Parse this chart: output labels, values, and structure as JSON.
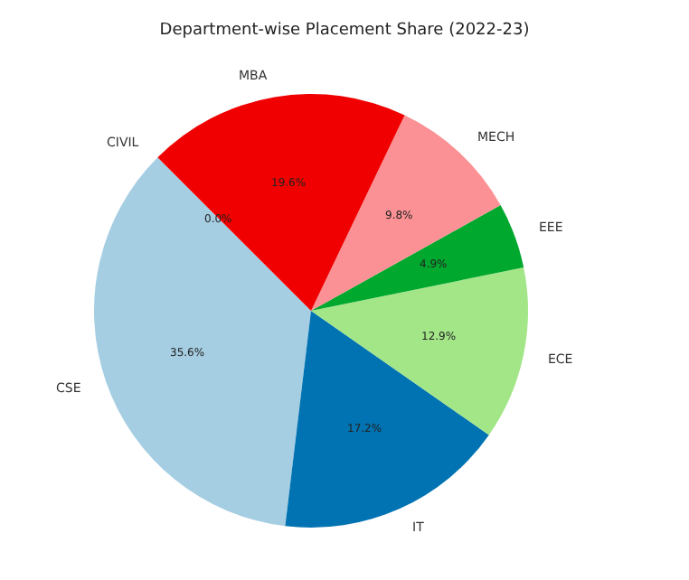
{
  "chart_data": {
    "type": "pie",
    "title": "Department-wise Placement Share (2022-23)",
    "categories": [
      "CSE",
      "IT",
      "ECE",
      "EEE",
      "MECH",
      "MBA",
      "CIVIL"
    ],
    "values": [
      35.6,
      17.2,
      12.9,
      4.9,
      9.8,
      19.6,
      0.0
    ],
    "colors": [
      "#a6cee3",
      "#0173b2",
      "#a3e688",
      "#00a82d",
      "#fb9194",
      "#f00000",
      "#fdbf6f"
    ],
    "value_labels": [
      "35.6%",
      "17.2%",
      "12.9%",
      "4.9%",
      "9.8%",
      "19.6%",
      "0.0%"
    ]
  }
}
